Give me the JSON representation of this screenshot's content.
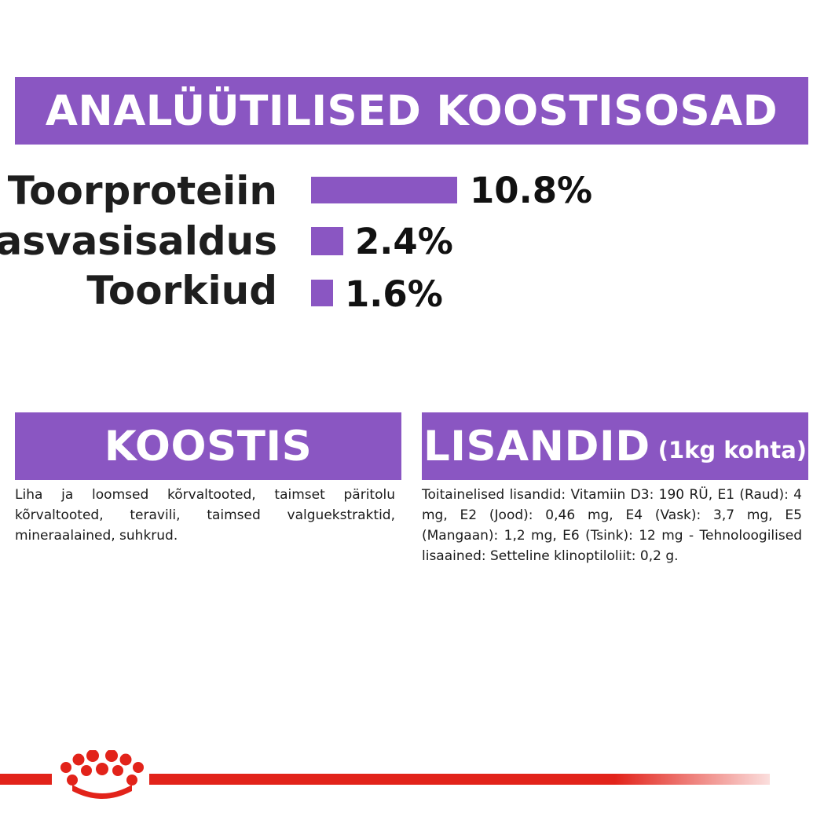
{
  "analytical": {
    "title": "ANALÜÜTILISED KOOSTISOSAD",
    "items": [
      {
        "label": "Toorproteiin",
        "value_text": "10.8%",
        "value": 10.8
      },
      {
        "label": "Rasvasisaldus",
        "value_text": "2.4%",
        "value": 2.4
      },
      {
        "label": "Toorkiud",
        "value_text": "1.6%",
        "value": 1.6
      }
    ]
  },
  "composition": {
    "title": "KOOSTIS",
    "text": "Liha ja loomsed kõrvaltooted, taimset päritolu kõrvaltooted, teravili, taimsed valguekstraktid, mineraalained, suhkrud."
  },
  "additives": {
    "title": "LISANDID",
    "title_suffix": "(1kg kohta)",
    "text": "Toitainelised lisandid: Vitamiin D3: 190 RÜ, E1 (Raud): 4 mg, E2 (Jood): 0,46 mg, E4 (Vask): 3,7 mg, E5 (Mangaan): 1,2 mg, E6 (Tsink): 12 mg - Tehnoloogilised lisaained: Setteline klinoptiloliit: 0,2 g."
  },
  "colors": {
    "accent": "#8a56c2",
    "brand_red": "#e2231a"
  },
  "icons": {
    "logo": "royal-canin-crown-icon"
  }
}
